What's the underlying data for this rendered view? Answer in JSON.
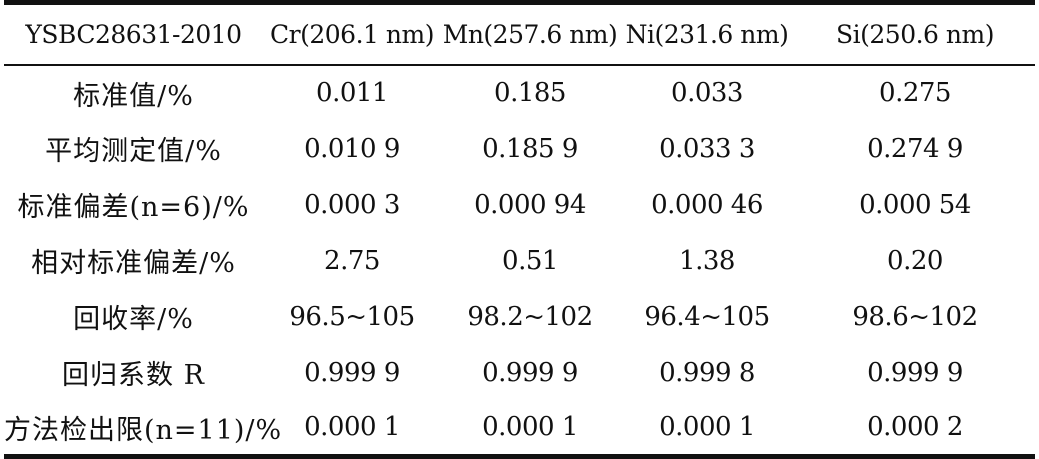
{
  "table": {
    "headers": [
      "YSBC28631-2010",
      "Cr(206.1 nm)",
      "Mn(257.6 nm)",
      "Ni(231.6 nm)",
      "Si(250.6 nm)"
    ],
    "rows": [
      [
        "标准值/%",
        "0.011",
        "0.185",
        "0.033",
        "0.275"
      ],
      [
        "平均测定值/%",
        "0.010 9",
        "0.185 9",
        "0.033 3",
        "0.274 9"
      ],
      [
        "标准偏差(n=6)/%",
        "0.000 3",
        "0.000 94",
        "0.000 46",
        "0.000 54"
      ],
      [
        "相对标准偏差/%",
        "2.75",
        "0.51",
        "1.38",
        "0.20"
      ],
      [
        "回收率/%",
        "96.5~105",
        "98.2~102",
        "96.4~105",
        "98.6~102"
      ],
      [
        "回归系数 R",
        "0.999 9",
        "0.999 9",
        "0.999 8",
        "0.999 9"
      ],
      [
        "方法检出限(n=11)/%",
        "0.000 1",
        "0.000 1",
        "0.000 1",
        "0.000 2"
      ]
    ]
  }
}
